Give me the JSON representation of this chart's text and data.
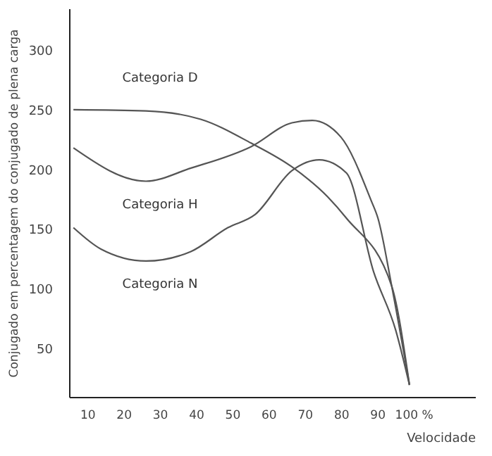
{
  "chart_data": {
    "type": "line",
    "xlabel": "Velocidade",
    "ylabel": "Conjugado em percentagem do conjugado de plena carga",
    "xlim": [
      5,
      117
    ],
    "ylim": [
      9,
      335
    ],
    "xticks": [
      10,
      20,
      30,
      40,
      50,
      60,
      70,
      80,
      90,
      {
        "value": 100,
        "label": "100 %"
      }
    ],
    "yticks": [
      50,
      100,
      150,
      200,
      250,
      300
    ],
    "grid": false,
    "legend": false,
    "marker": "none",
    "line_style": "solid",
    "series": [
      {
        "name": "Categoria D",
        "color": "#555555",
        "x": [
          6.2,
          26.2,
          41.3,
          55.2,
          66.5,
          76.3,
          81.5,
          94,
          98.9
        ],
        "values": [
          250,
          249,
          242,
          222,
          202,
          177,
          159,
          102,
          19
        ]
      },
      {
        "name": "Categoria H",
        "color": "#555555",
        "x": [
          6.2,
          26.2,
          38.6,
          55.2,
          66.5,
          72.1,
          80,
          88.3,
          90.2,
          94,
          98.9
        ],
        "values": [
          218,
          190,
          201,
          219,
          239,
          241,
          227,
          174,
          159,
          102,
          19
        ]
      },
      {
        "name": "Categoria N",
        "color": "#555555",
        "x": [
          6.2,
          13.8,
          26.2,
          38.6,
          48.8,
          56.3,
          66.5,
          74,
          81.5,
          89,
          95.1,
          98.9
        ],
        "values": [
          151,
          133,
          123,
          131,
          151,
          162,
          199,
          208,
          197,
          114,
          65,
          19
        ]
      }
    ]
  }
}
